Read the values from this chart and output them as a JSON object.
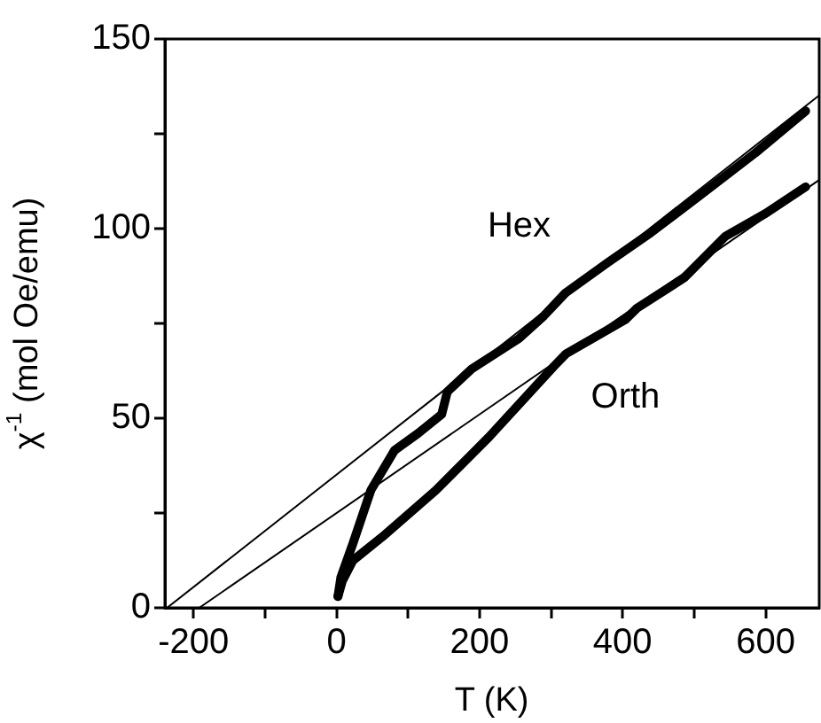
{
  "chart_data": {
    "type": "line",
    "xlabel": "T (K)",
    "ylabel": "χ$^{-1}$ (mol Oe/emu)",
    "xlim": [
      -240,
      675
    ],
    "ylim": [
      0,
      150
    ],
    "xticks": [
      -200,
      {
        "value": -100,
        "label": null
      },
      0,
      {
        "value": 100,
        "label": null
      },
      200,
      {
        "value": 300,
        "label": null
      },
      400,
      {
        "value": 500,
        "label": null
      },
      600
    ],
    "yticks": [
      0,
      {
        "value": 25,
        "label": null
      },
      50,
      {
        "value": 75,
        "label": null
      },
      100,
      {
        "value": 125,
        "label": null
      },
      150
    ],
    "grid": false,
    "legend": false,
    "marker": "none",
    "line_style": "solid",
    "series": [
      {
        "name": "Hex",
        "color": "#000000",
        "x": [
          2,
          6,
          23,
          48,
          81,
          114,
          147,
          155,
          189,
          255,
          290,
          320,
          379,
          440,
          503,
          586,
          656
        ],
        "values": [
          3,
          8,
          17,
          31,
          41.5,
          46,
          51,
          57,
          63,
          71,
          77,
          83,
          91,
          99,
          108,
          120,
          131
        ]
      },
      {
        "name": "Orth",
        "color": "#000000",
        "x": [
          2,
          8,
          23,
          64,
          139,
          213,
          304,
          321,
          404,
          420,
          486,
          544,
          600,
          656
        ],
        "values": [
          3,
          7,
          12.5,
          18.7,
          31,
          45,
          63.7,
          67,
          76,
          79,
          87,
          98,
          104,
          111
        ]
      },
      {
        "color": "#000000",
        "x": [
          -237,
          674
        ],
        "values": [
          0,
          135
        ]
      },
      {
        "color": "#000000",
        "x": [
          -192,
          674
        ],
        "values": [
          0,
          112.7
        ]
      }
    ]
  }
}
